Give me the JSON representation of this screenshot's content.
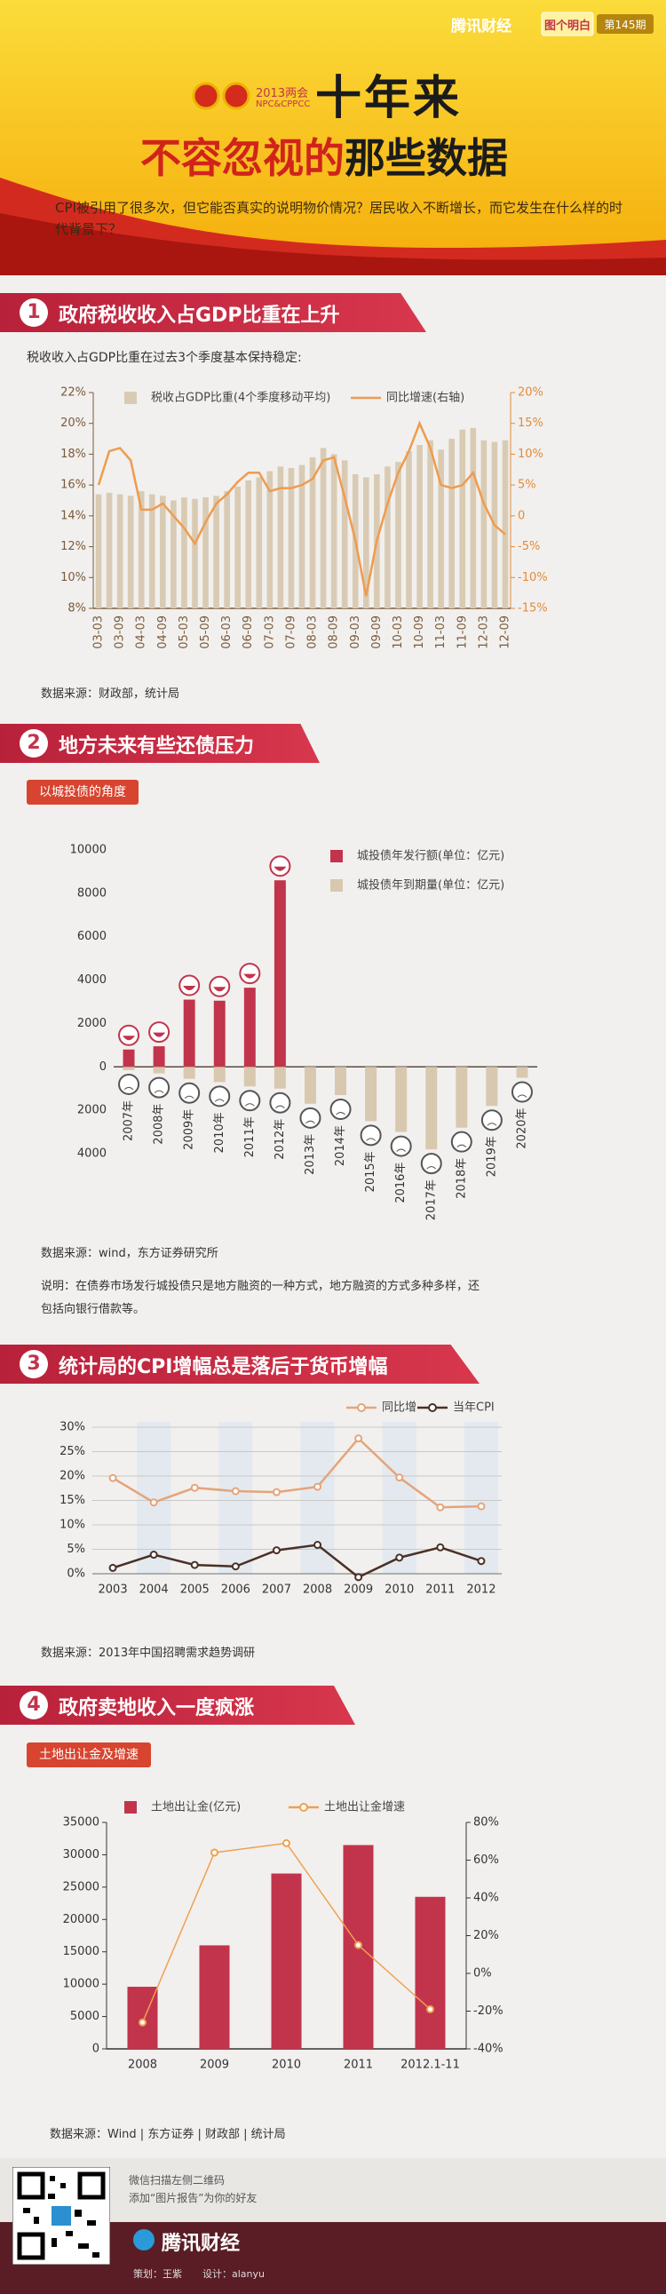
{
  "header": {
    "brand": "腾讯财经",
    "column": "图个明白",
    "issue": "第145期",
    "event": "2013两会",
    "event_en": "NPC&CPPCC",
    "title_top": "十年来",
    "title_red": "不容忽视的",
    "title_black": "那些数据",
    "intro": "CPI被引用了很多次，但它能否真实的说明物价情况？居民收入不断增长，而它发生在什么样的时代背景下？"
  },
  "sections": [
    {
      "number": "1",
      "title": "政府税收收入占GDP比重在上升",
      "subtitle": "税收收入占GDP比重在过去3个季度基本保持稳定:",
      "source": "数据来源：财政部，统计局"
    },
    {
      "number": "2",
      "title": "地方未来有些还债压力",
      "badge": "以城投债的角度",
      "source": "数据来源：wind，东方证券研究所",
      "note": "说明：在债券市场发行城投债只是地方融资的一种方式，地方融资的方式多种多样，还包括向银行借款等。"
    },
    {
      "number": "3",
      "title": "统计局的CPI增幅总是落后于货币增幅",
      "source": "数据来源：2013年中国招聘需求趋势调研"
    },
    {
      "number": "4",
      "title": "政府卖地收入一度疯涨",
      "badge": "土地出让金及增速",
      "source": "数据来源：Wind | 东方证券 | 财政部 | 统计局"
    }
  ],
  "footer": {
    "line1": "微信扫描左侧二维码",
    "line2": "添加“图片报告”为你的好友",
    "brand": "腾讯财经",
    "planner": "策划：王紫",
    "designer": "设计：alanyu"
  },
  "chart_data": [
    {
      "type": "combo",
      "x_label_rotation": -90,
      "categories": [
        "03-03",
        null,
        "03-09",
        null,
        "04-03",
        null,
        "04-09",
        null,
        "05-03",
        null,
        "05-09",
        null,
        "06-03",
        null,
        "06-09",
        null,
        "07-03",
        null,
        "07-09",
        null,
        "08-03",
        null,
        "08-09",
        null,
        "09-03",
        null,
        "09-09",
        null,
        "10-03",
        null,
        "10-09",
        null,
        "11-03",
        null,
        "11-09",
        null,
        "12-03",
        null,
        "12-09"
      ],
      "series": [
        {
          "name": "税收占GDP比重(4个季度移动平均)",
          "type": "bar",
          "color": "#d9cbb3",
          "values": [
            15.4,
            15.5,
            15.4,
            15.3,
            15.6,
            15.4,
            15.3,
            15.0,
            15.2,
            15.1,
            15.2,
            15.3,
            15.6,
            15.9,
            16.3,
            16.5,
            16.9,
            17.2,
            17.1,
            17.3,
            17.8,
            18.4,
            18.0,
            17.6,
            16.7,
            16.5,
            16.7,
            17.2,
            17.5,
            18.2,
            18.6,
            18.9,
            18.3,
            19.0,
            19.6,
            19.7,
            18.9,
            18.8,
            18.9
          ]
        },
        {
          "name": "同比增速(右轴)",
          "type": "line",
          "axis": "y2",
          "color": "#ef9b4f",
          "values": [
            5,
            10.5,
            11,
            9,
            1,
            1,
            2,
            0,
            -2,
            -4.5,
            -1,
            2,
            3.5,
            5.5,
            7,
            7,
            4,
            4.5,
            4.5,
            5,
            6,
            9,
            9.5,
            3,
            -4,
            -13,
            -4,
            2,
            7,
            10.5,
            15,
            11,
            5,
            4.5,
            5,
            7,
            2,
            -1.5,
            -3
          ]
        }
      ],
      "ylim": [
        8,
        22
      ],
      "yticks": [
        {
          "value": 8,
          "label": "8%"
        },
        {
          "value": 10,
          "label": "10%"
        },
        {
          "value": 12,
          "label": "12%"
        },
        {
          "value": 14,
          "label": "14%"
        },
        {
          "value": 16,
          "label": "16%"
        },
        {
          "value": 18,
          "label": "18%"
        },
        {
          "value": 20,
          "label": "20%"
        },
        {
          "value": 22,
          "label": "22%"
        }
      ],
      "y2lim": [
        -15,
        20
      ],
      "y2ticks": [
        {
          "value": -15,
          "label": "-15%"
        },
        {
          "value": -10,
          "label": "-10%"
        },
        {
          "value": -5,
          "label": "-5%"
        },
        0,
        {
          "value": 5,
          "label": "5%"
        },
        {
          "value": 10,
          "label": "10%"
        },
        {
          "value": 15,
          "label": "15%"
        },
        {
          "value": 20,
          "label": "20%"
        }
      ],
      "grid": false
    },
    {
      "type": "bar",
      "x_label_rotation": -90,
      "faces": true,
      "categories": [
        "2007年",
        "2008年",
        "2009年",
        "2010年",
        "2011年",
        "2012年",
        "2013年",
        "2014年",
        "2015年",
        "2016年",
        "2017年",
        "2018年",
        "2019年",
        "2020年"
      ],
      "series": [
        {
          "name": "城投债年发行额(单位：亿元)",
          "type": "bar",
          "color": "#c2344c",
          "values": [
            800,
            950,
            3100,
            3050,
            3650,
            8600,
            null,
            null,
            null,
            null,
            null,
            null,
            null,
            null
          ]
        },
        {
          "name": "城投债年到期量(单位：亿元)",
          "type": "bar",
          "color": "#d7c8af",
          "values": [
            -150,
            -300,
            -550,
            -700,
            -900,
            -1000,
            -1700,
            -1300,
            -2500,
            -3000,
            -3800,
            -2800,
            -1800,
            -500
          ]
        }
      ],
      "ylim": [
        -4000,
        10000
      ],
      "yticks": [
        {
          "value": -4000,
          "label": "4000"
        },
        {
          "value": -2000,
          "label": "2000"
        },
        0,
        2000,
        4000,
        6000,
        8000,
        10000
      ],
      "grid": false
    },
    {
      "type": "line",
      "shaded_columns": true,
      "categories": [
        "2003",
        "2004",
        "2005",
        "2006",
        "2007",
        "2008",
        "2009",
        "2010",
        "2011",
        "2012"
      ],
      "series": [
        {
          "name": "同比增",
          "type": "line",
          "color": "#e5a47a",
          "values": [
            19.6,
            14.6,
            17.6,
            16.9,
            16.7,
            17.8,
            27.7,
            19.7,
            13.6,
            13.8
          ]
        },
        {
          "name": "当年CPI",
          "type": "line",
          "color": "#4a3026",
          "values": [
            1.2,
            3.9,
            1.8,
            1.5,
            4.8,
            5.9,
            -0.7,
            3.3,
            5.4,
            2.6
          ]
        }
      ],
      "ylim": [
        0,
        30
      ],
      "yticks": [
        {
          "value": 0,
          "label": "0%"
        },
        {
          "value": 5,
          "label": "5%"
        },
        {
          "value": 10,
          "label": "10%"
        },
        {
          "value": 15,
          "label": "15%"
        },
        {
          "value": 20,
          "label": "20%"
        },
        {
          "value": 25,
          "label": "25%"
        },
        {
          "value": 30,
          "label": "30%"
        }
      ],
      "grid": true
    },
    {
      "type": "combo",
      "categories": [
        "2008",
        "2009",
        "2010",
        "2011",
        "2012.1-11"
      ],
      "series": [
        {
          "name": "土地出让金(亿元)",
          "type": "bar",
          "color": "#c2344c",
          "values": [
            9600,
            16000,
            27100,
            31500,
            23500
          ]
        },
        {
          "name": "土地出让金增速",
          "type": "line",
          "axis": "y2",
          "color": "#f0a050",
          "values": [
            -26,
            64,
            69,
            15,
            -19
          ]
        }
      ],
      "ylim": [
        0,
        35000
      ],
      "yticks": [
        0,
        5000,
        10000,
        15000,
        20000,
        25000,
        30000,
        35000
      ],
      "y2lim": [
        -40,
        80
      ],
      "y2ticks": [
        {
          "value": -40,
          "label": "-40%"
        },
        {
          "value": -20,
          "label": "-20%"
        },
        {
          "value": 0,
          "label": "0%"
        },
        {
          "value": 20,
          "label": "20%"
        },
        {
          "value": 40,
          "label": "40%"
        },
        {
          "value": 60,
          "label": "60%"
        },
        {
          "value": 80,
          "label": "80%"
        }
      ],
      "grid": false
    }
  ]
}
